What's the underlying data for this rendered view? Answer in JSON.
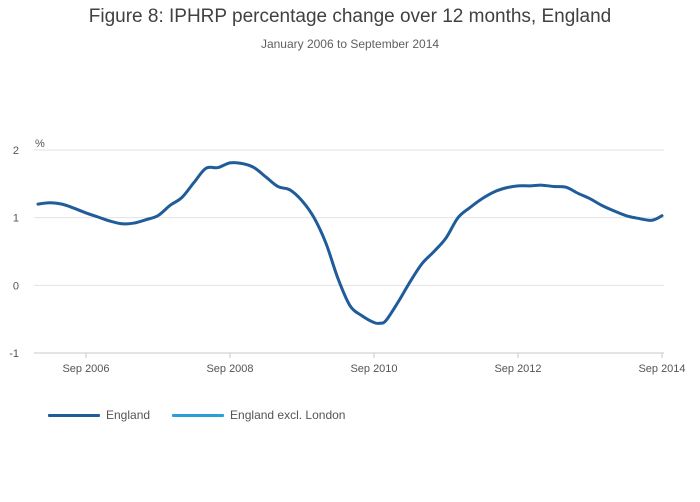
{
  "chart_data": {
    "type": "line",
    "title": "Figure 8: IPHRP percentage change over 12 months, England",
    "subtitle": "January 2006 to September 2014",
    "ylabel": "%",
    "xlabel": "",
    "ylim": [
      -1,
      2
    ],
    "y_ticks": [
      2,
      1,
      0,
      -1
    ],
    "x_ticks": [
      "Sep 2006",
      "Sep 2008",
      "Sep 2010",
      "Sep 2012",
      "Sep 2014"
    ],
    "x_range": [
      "Jan 2006",
      "Sep 2014"
    ],
    "grid": true,
    "legend_position": "bottom-left",
    "series": [
      {
        "name": "England",
        "color": "#1f5c99",
        "points": [
          [
            "Jan 2006",
            1.2
          ],
          [
            "Mar 2006",
            1.22
          ],
          [
            "May 2006",
            1.2
          ],
          [
            "Jul 2006",
            1.14
          ],
          [
            "Sep 2006",
            1.07
          ],
          [
            "Nov 2006",
            1.01
          ],
          [
            "Jan 2007",
            0.95
          ],
          [
            "Mar 2007",
            0.91
          ],
          [
            "May 2007",
            0.92
          ],
          [
            "Jul 2007",
            0.97
          ],
          [
            "Sep 2007",
            1.03
          ],
          [
            "Nov 2007",
            1.18
          ],
          [
            "Jan 2008",
            1.3
          ],
          [
            "Mar 2008",
            1.52
          ],
          [
            "May 2008",
            1.73
          ],
          [
            "Jul 2008",
            1.74
          ],
          [
            "Sep 2008",
            1.81
          ],
          [
            "Nov 2008",
            1.8
          ],
          [
            "Jan 2009",
            1.74
          ],
          [
            "Mar 2009",
            1.6
          ],
          [
            "May 2009",
            1.46
          ],
          [
            "Jul 2009",
            1.41
          ],
          [
            "Sep 2009",
            1.25
          ],
          [
            "Nov 2009",
            1.0
          ],
          [
            "Jan 2010",
            0.62
          ],
          [
            "Mar 2010",
            0.1
          ],
          [
            "May 2010",
            -0.3
          ],
          [
            "Jul 2010",
            -0.45
          ],
          [
            "Sep 2010",
            -0.55
          ],
          [
            "Oct 2010",
            -0.56
          ],
          [
            "Nov 2010",
            -0.52
          ],
          [
            "Jan 2011",
            -0.25
          ],
          [
            "Mar 2011",
            0.05
          ],
          [
            "May 2011",
            0.32
          ],
          [
            "Jul 2011",
            0.5
          ],
          [
            "Sep 2011",
            0.7
          ],
          [
            "Nov 2011",
            1.0
          ],
          [
            "Jan 2012",
            1.15
          ],
          [
            "Mar 2012",
            1.28
          ],
          [
            "May 2012",
            1.38
          ],
          [
            "Jul 2012",
            1.44
          ],
          [
            "Sep 2012",
            1.47
          ],
          [
            "Nov 2012",
            1.47
          ],
          [
            "Jan 2013",
            1.48
          ],
          [
            "Mar 2013",
            1.46
          ],
          [
            "May 2013",
            1.45
          ],
          [
            "Jul 2013",
            1.36
          ],
          [
            "Sep 2013",
            1.28
          ],
          [
            "Nov 2013",
            1.18
          ],
          [
            "Jan 2014",
            1.1
          ],
          [
            "Mar 2014",
            1.03
          ],
          [
            "May 2014",
            0.99
          ],
          [
            "Jul 2014",
            0.96
          ],
          [
            "Aug 2014",
            0.98
          ],
          [
            "Sep 2014",
            1.03
          ]
        ]
      },
      {
        "name": "England excl. London",
        "color": "#27a0d9",
        "points": []
      }
    ]
  }
}
